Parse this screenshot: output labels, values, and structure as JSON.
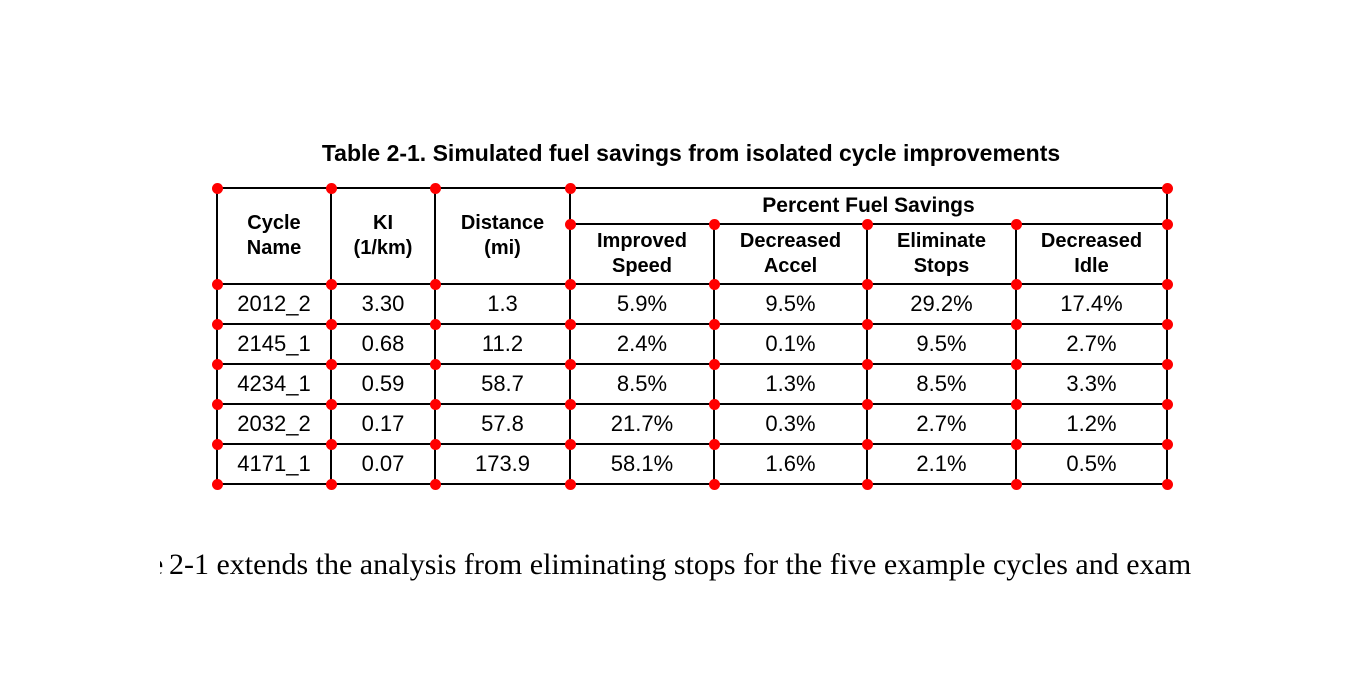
{
  "caption": "Table 2-1. Simulated fuel savings from isolated cycle improvements",
  "table": {
    "headers": {
      "cycle_name": "Cycle\nName",
      "ki": "KI\n(1/km)",
      "distance": "Distance\n(mi)",
      "group": "Percent Fuel Savings",
      "improved_speed": "Improved\nSpeed",
      "decreased_accel": "Decreased\nAccel",
      "eliminate_stops": "Eliminate\nStops",
      "decreased_idle": "Decreased\nIdle"
    },
    "rows": [
      [
        "2012_2",
        "3.30",
        "1.3",
        "5.9%",
        "9.5%",
        "29.2%",
        "17.4%"
      ],
      [
        "2145_1",
        "0.68",
        "11.2",
        "2.4%",
        "0.1%",
        "9.5%",
        "2.7%"
      ],
      [
        "4234_1",
        "0.59",
        "58.7",
        "8.5%",
        "1.3%",
        "8.5%",
        "3.3%"
      ],
      [
        "2032_2",
        "0.17",
        "57.8",
        "21.7%",
        "0.3%",
        "2.7%",
        "1.2%"
      ],
      [
        "4171_1",
        "0.07",
        "173.9",
        "58.1%",
        "1.6%",
        "2.1%",
        "0.5%"
      ]
    ]
  },
  "chart_data": {
    "type": "table",
    "title": "Table 2-1. Simulated fuel savings from isolated cycle improvements",
    "columns": [
      "Cycle Name",
      "KI (1/km)",
      "Distance (mi)",
      "Improved Speed",
      "Decreased Accel",
      "Eliminate Stops",
      "Decreased Idle"
    ],
    "column_group": {
      "label": "Percent Fuel Savings",
      "spans": [
        "Improved Speed",
        "Decreased Accel",
        "Eliminate Stops",
        "Decreased Idle"
      ]
    },
    "rows": [
      [
        "2012_2",
        3.3,
        1.3,
        "5.9%",
        "9.5%",
        "29.2%",
        "17.4%"
      ],
      [
        "2145_1",
        0.68,
        11.2,
        "2.4%",
        "0.1%",
        "9.5%",
        "2.7%"
      ],
      [
        "4234_1",
        0.59,
        58.7,
        "8.5%",
        "1.3%",
        "8.5%",
        "3.3%"
      ],
      [
        "2032_2",
        0.17,
        57.8,
        "21.7%",
        "0.3%",
        "2.7%",
        "1.2%"
      ],
      [
        "4171_1",
        0.07,
        173.9,
        "58.1%",
        "1.6%",
        "2.1%",
        "0.5%"
      ]
    ]
  },
  "markers": {
    "color": "#ff0000"
  },
  "paragraph": {
    "clipped_prefix": "e",
    "text": "2-1 extends the analysis from eliminating stops for the five example cycles and exam"
  }
}
